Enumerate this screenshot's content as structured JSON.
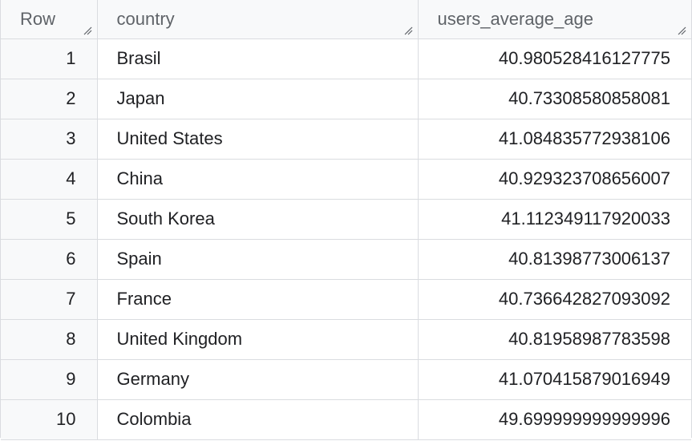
{
  "columns": {
    "row": "Row",
    "country": "country",
    "users_average_age": "users_average_age"
  },
  "icons": {
    "column_resize": "resize-handle-icon"
  },
  "colors": {
    "header_bg": "#f8f9fa",
    "border": "#dadce0",
    "header_text": "#5f6368",
    "cell_text": "#202124"
  },
  "rows": [
    {
      "row": "1",
      "country": "Brasil",
      "users_average_age": "40.980528416127775"
    },
    {
      "row": "2",
      "country": "Japan",
      "users_average_age": "40.73308580858081"
    },
    {
      "row": "3",
      "country": "United States",
      "users_average_age": "41.084835772938106"
    },
    {
      "row": "4",
      "country": "China",
      "users_average_age": "40.929323708656007"
    },
    {
      "row": "5",
      "country": "South Korea",
      "users_average_age": "41.112349117920033"
    },
    {
      "row": "6",
      "country": "Spain",
      "users_average_age": "40.81398773006137"
    },
    {
      "row": "7",
      "country": "France",
      "users_average_age": "40.736642827093092"
    },
    {
      "row": "8",
      "country": "United Kingdom",
      "users_average_age": "40.81958987783598"
    },
    {
      "row": "9",
      "country": "Germany",
      "users_average_age": "41.070415879016949"
    },
    {
      "row": "10",
      "country": "Colombia",
      "users_average_age": "49.699999999999996"
    }
  ]
}
